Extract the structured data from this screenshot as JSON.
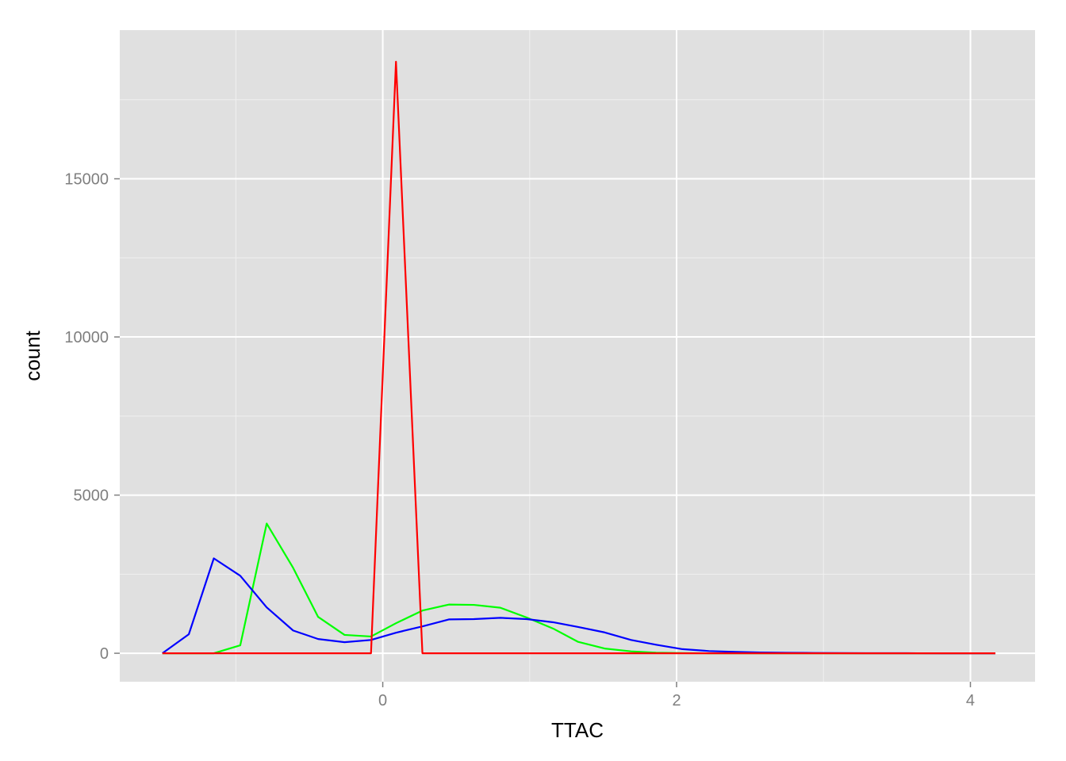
{
  "chart_data": {
    "type": "line",
    "title": "",
    "xlabel": "TTAC",
    "ylabel": "count",
    "xlim": [
      -1.79,
      4.44
    ],
    "ylim": [
      -900,
      19700
    ],
    "x_ticks": [
      0,
      2,
      4
    ],
    "x_tick_labels": [
      "0",
      "2",
      "4"
    ],
    "y_ticks": [
      0,
      5000,
      10000,
      15000
    ],
    "y_tick_labels": [
      "0",
      "5000",
      "10000",
      "15000"
    ],
    "grid": true,
    "legend": "none",
    "background": "#e0e0e0",
    "grid_color": "#ffffff",
    "x": [
      -1.5,
      -1.32,
      -1.15,
      -0.97,
      -0.79,
      -0.61,
      -0.44,
      -0.26,
      -0.08,
      0.09,
      0.27,
      0.45,
      0.62,
      0.8,
      0.98,
      1.16,
      1.33,
      1.51,
      1.69,
      1.86,
      2.04,
      2.22,
      2.4,
      2.57,
      2.75,
      2.93,
      3.1,
      3.28,
      3.46,
      3.64,
      3.81,
      3.99,
      4.17
    ],
    "series": [
      {
        "color": "#00ff00",
        "values": [
          0,
          0,
          0,
          250,
          4100,
          2700,
          1150,
          580,
          530,
          950,
          1350,
          1540,
          1530,
          1440,
          1130,
          780,
          360,
          150,
          60,
          20,
          5,
          0,
          0,
          0,
          0,
          0,
          0,
          0,
          0,
          0,
          0,
          0,
          0
        ]
      },
      {
        "color": "#0000ff",
        "values": [
          0,
          600,
          3000,
          2450,
          1450,
          720,
          450,
          350,
          420,
          650,
          850,
          1070,
          1080,
          1120,
          1080,
          980,
          830,
          660,
          420,
          270,
          130,
          70,
          45,
          25,
          15,
          10,
          5,
          3,
          2,
          1,
          0,
          0,
          0
        ]
      },
      {
        "color": "#ff0000",
        "values": [
          0,
          0,
          0,
          0,
          0,
          0,
          0,
          0,
          0,
          18700,
          0,
          0,
          0,
          0,
          0,
          0,
          0,
          0,
          0,
          0,
          0,
          0,
          0,
          0,
          0,
          0,
          0,
          0,
          0,
          0,
          0,
          0,
          0
        ]
      }
    ]
  }
}
